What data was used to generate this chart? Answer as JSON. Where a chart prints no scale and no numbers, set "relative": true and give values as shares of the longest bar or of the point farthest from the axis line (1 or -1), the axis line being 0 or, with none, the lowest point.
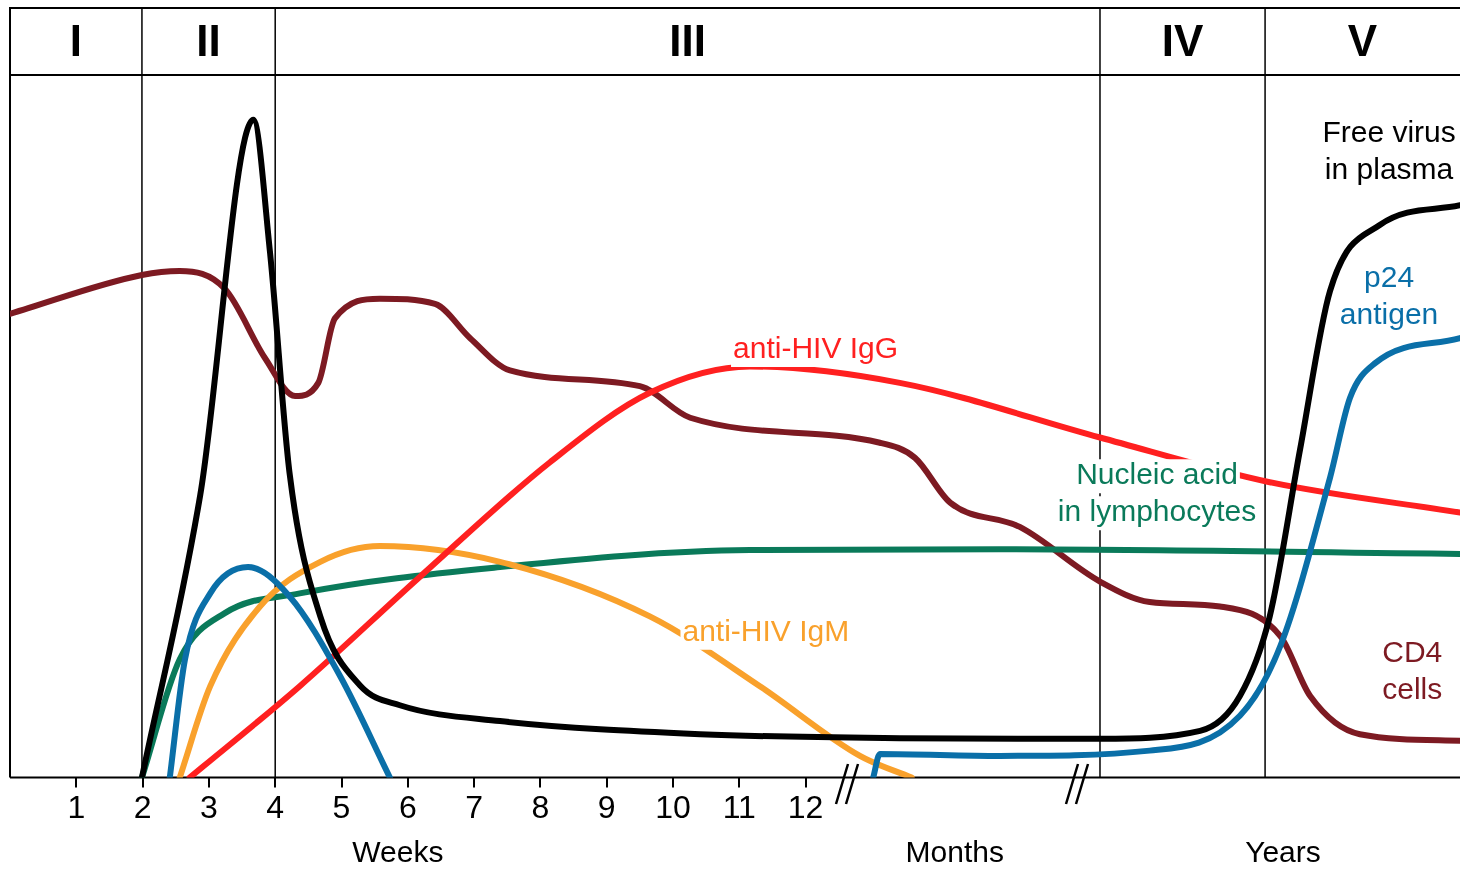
{
  "chart_data": {
    "type": "line",
    "relative": true,
    "xlim": [
      0,
      21.87
    ],
    "xticks": [
      1,
      2,
      3,
      4,
      5,
      6,
      7,
      8,
      9,
      10,
      11,
      12
    ],
    "grid": false,
    "legend": false,
    "marker": "none",
    "line_style": "solid",
    "ref_lines": [
      {
        "axis": "x",
        "value": 1.99
      },
      {
        "axis": "x",
        "value": 4.0
      },
      {
        "axis": "x",
        "value": 16.44
      },
      {
        "axis": "x",
        "value": 18.93
      }
    ],
    "annotations": [
      "I",
      "II",
      "III",
      "IV",
      "V",
      "Weeks",
      "Months",
      "Years"
    ],
    "series": [
      {
        "name": "Free virus in plasma",
        "color": "#000000",
        "x": [
          1.99,
          2.87,
          3.67,
          3.92,
          4.22,
          4.68,
          5.28,
          5.88,
          7.39,
          10.41,
          13.42,
          16.44,
          17.95,
          18.55,
          19.0,
          19.46,
          19.91,
          20.66,
          21.87
        ],
        "values": [
          0,
          0.43,
          1.0,
          0.8,
          0.46,
          0.245,
          0.14,
          0.11,
          0.086,
          0.066,
          0.06,
          0.059,
          0.071,
          0.124,
          0.245,
          0.5,
          0.74,
          0.84,
          0.87
        ]
      },
      {
        "name": "p24 antigen",
        "color": "#0a6fa8",
        "x": [
          2.41,
          2.64,
          3.02,
          3.59,
          4.22,
          4.98,
          5.73,
          9.0,
          13.02,
          13.12,
          14.93,
          17.19,
          18.55,
          19.16,
          19.91,
          20.21,
          20.59,
          21.87
        ],
        "values": [
          0,
          0.18,
          0.28,
          0.32,
          0.275,
          0.154,
          0,
          null,
          0,
          0.036,
          0.033,
          0.041,
          0.094,
          0.2,
          0.456,
          0.577,
          0.63,
          0.668
        ]
      },
      {
        "name": "anti-HIV IgG",
        "color": "#ff2020",
        "x": [
          2.71,
          4.37,
          6.18,
          8.14,
          9.65,
          11.16,
          13.42,
          16.44,
          19.0,
          21.87
        ],
        "values": [
          0,
          0.139,
          0.305,
          0.479,
          0.585,
          0.625,
          0.6,
          0.517,
          0.449,
          0.403
        ]
      },
      {
        "name": "anti-HIV IgM",
        "color": "#f9a12c",
        "x": [
          2.56,
          3.02,
          3.77,
          4.68,
          5.58,
          7.39,
          9.65,
          11.31,
          12.82,
          13.6
        ],
        "values": [
          0,
          0.139,
          0.26,
          0.328,
          0.352,
          0.328,
          0.245,
          0.139,
          0.033,
          0
        ]
      },
      {
        "name": "Nucleic acid in lymphocytes",
        "color": "#0a7a5a",
        "x": [
          1.99,
          2.56,
          3.24,
          4.37,
          7.39,
          11.16,
          14.93,
          21.87
        ],
        "values": [
          0,
          0.18,
          0.25,
          0.28,
          0.32,
          0.346,
          0.347,
          0.34
        ]
      },
      {
        "name": "CD4 cells",
        "color": "#7d1a22",
        "x": [
          0,
          1.99,
          2.56,
          3.24,
          3.85,
          4.3,
          4.65,
          4.9,
          5.58,
          6.41,
          6.94,
          7.54,
          9.5,
          10.26,
          13.12,
          13.65,
          14.18,
          15.23,
          16.44,
          17.19,
          18.25,
          19.16,
          19.61,
          20.36,
          21.87
        ],
        "values": [
          0.705,
          0.764,
          0.77,
          0.743,
          0.637,
          0.58,
          0.6,
          0.698,
          0.728,
          0.72,
          0.668,
          0.619,
          0.595,
          0.547,
          0.509,
          0.486,
          0.418,
          0.381,
          0.298,
          0.267,
          0.26,
          0.215,
          0.124,
          0.066,
          0.056
        ]
      }
    ]
  }
}
